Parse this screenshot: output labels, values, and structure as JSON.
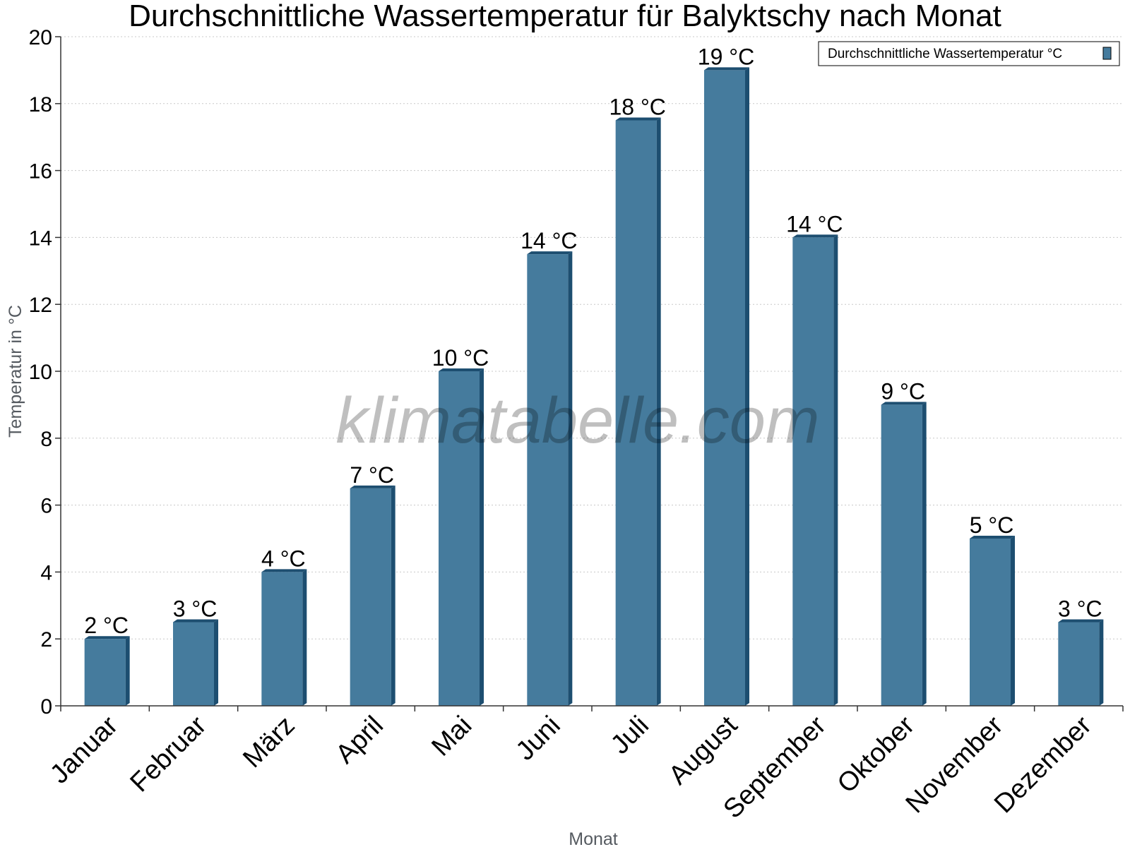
{
  "chart_data": {
    "type": "bar",
    "title": "Durchschnittliche Wassertemperatur für Balyktschy nach Monat",
    "xlabel": "Monat",
    "ylabel": "Temperatur in °C",
    "categories": [
      "Januar",
      "Februar",
      "März",
      "April",
      "Mai",
      "Juni",
      "Juli",
      "August",
      "September",
      "Oktober",
      "November",
      "Dezember"
    ],
    "series": [
      {
        "name": "Durchschnittliche Wassertemperatur °C",
        "values": [
          2,
          2.5,
          4,
          6.5,
          10,
          13.5,
          17.5,
          19,
          14,
          9,
          5,
          2.5
        ],
        "labels": [
          "2 °C",
          "3 °C",
          "4 °C",
          "7 °C",
          "10 °C",
          "14 °C",
          "18 °C",
          "19 °C",
          "14 °C",
          "9 °C",
          "5 °C",
          "3 °C"
        ],
        "color": "#457b9d",
        "side_color": "#1d4e70"
      }
    ],
    "ylim": [
      0,
      20
    ],
    "yticks": [
      0,
      2,
      4,
      6,
      8,
      10,
      12,
      14,
      16,
      18,
      20
    ],
    "grid": true,
    "legend_position": "top-right"
  },
  "watermark": "klimatabelle.com"
}
